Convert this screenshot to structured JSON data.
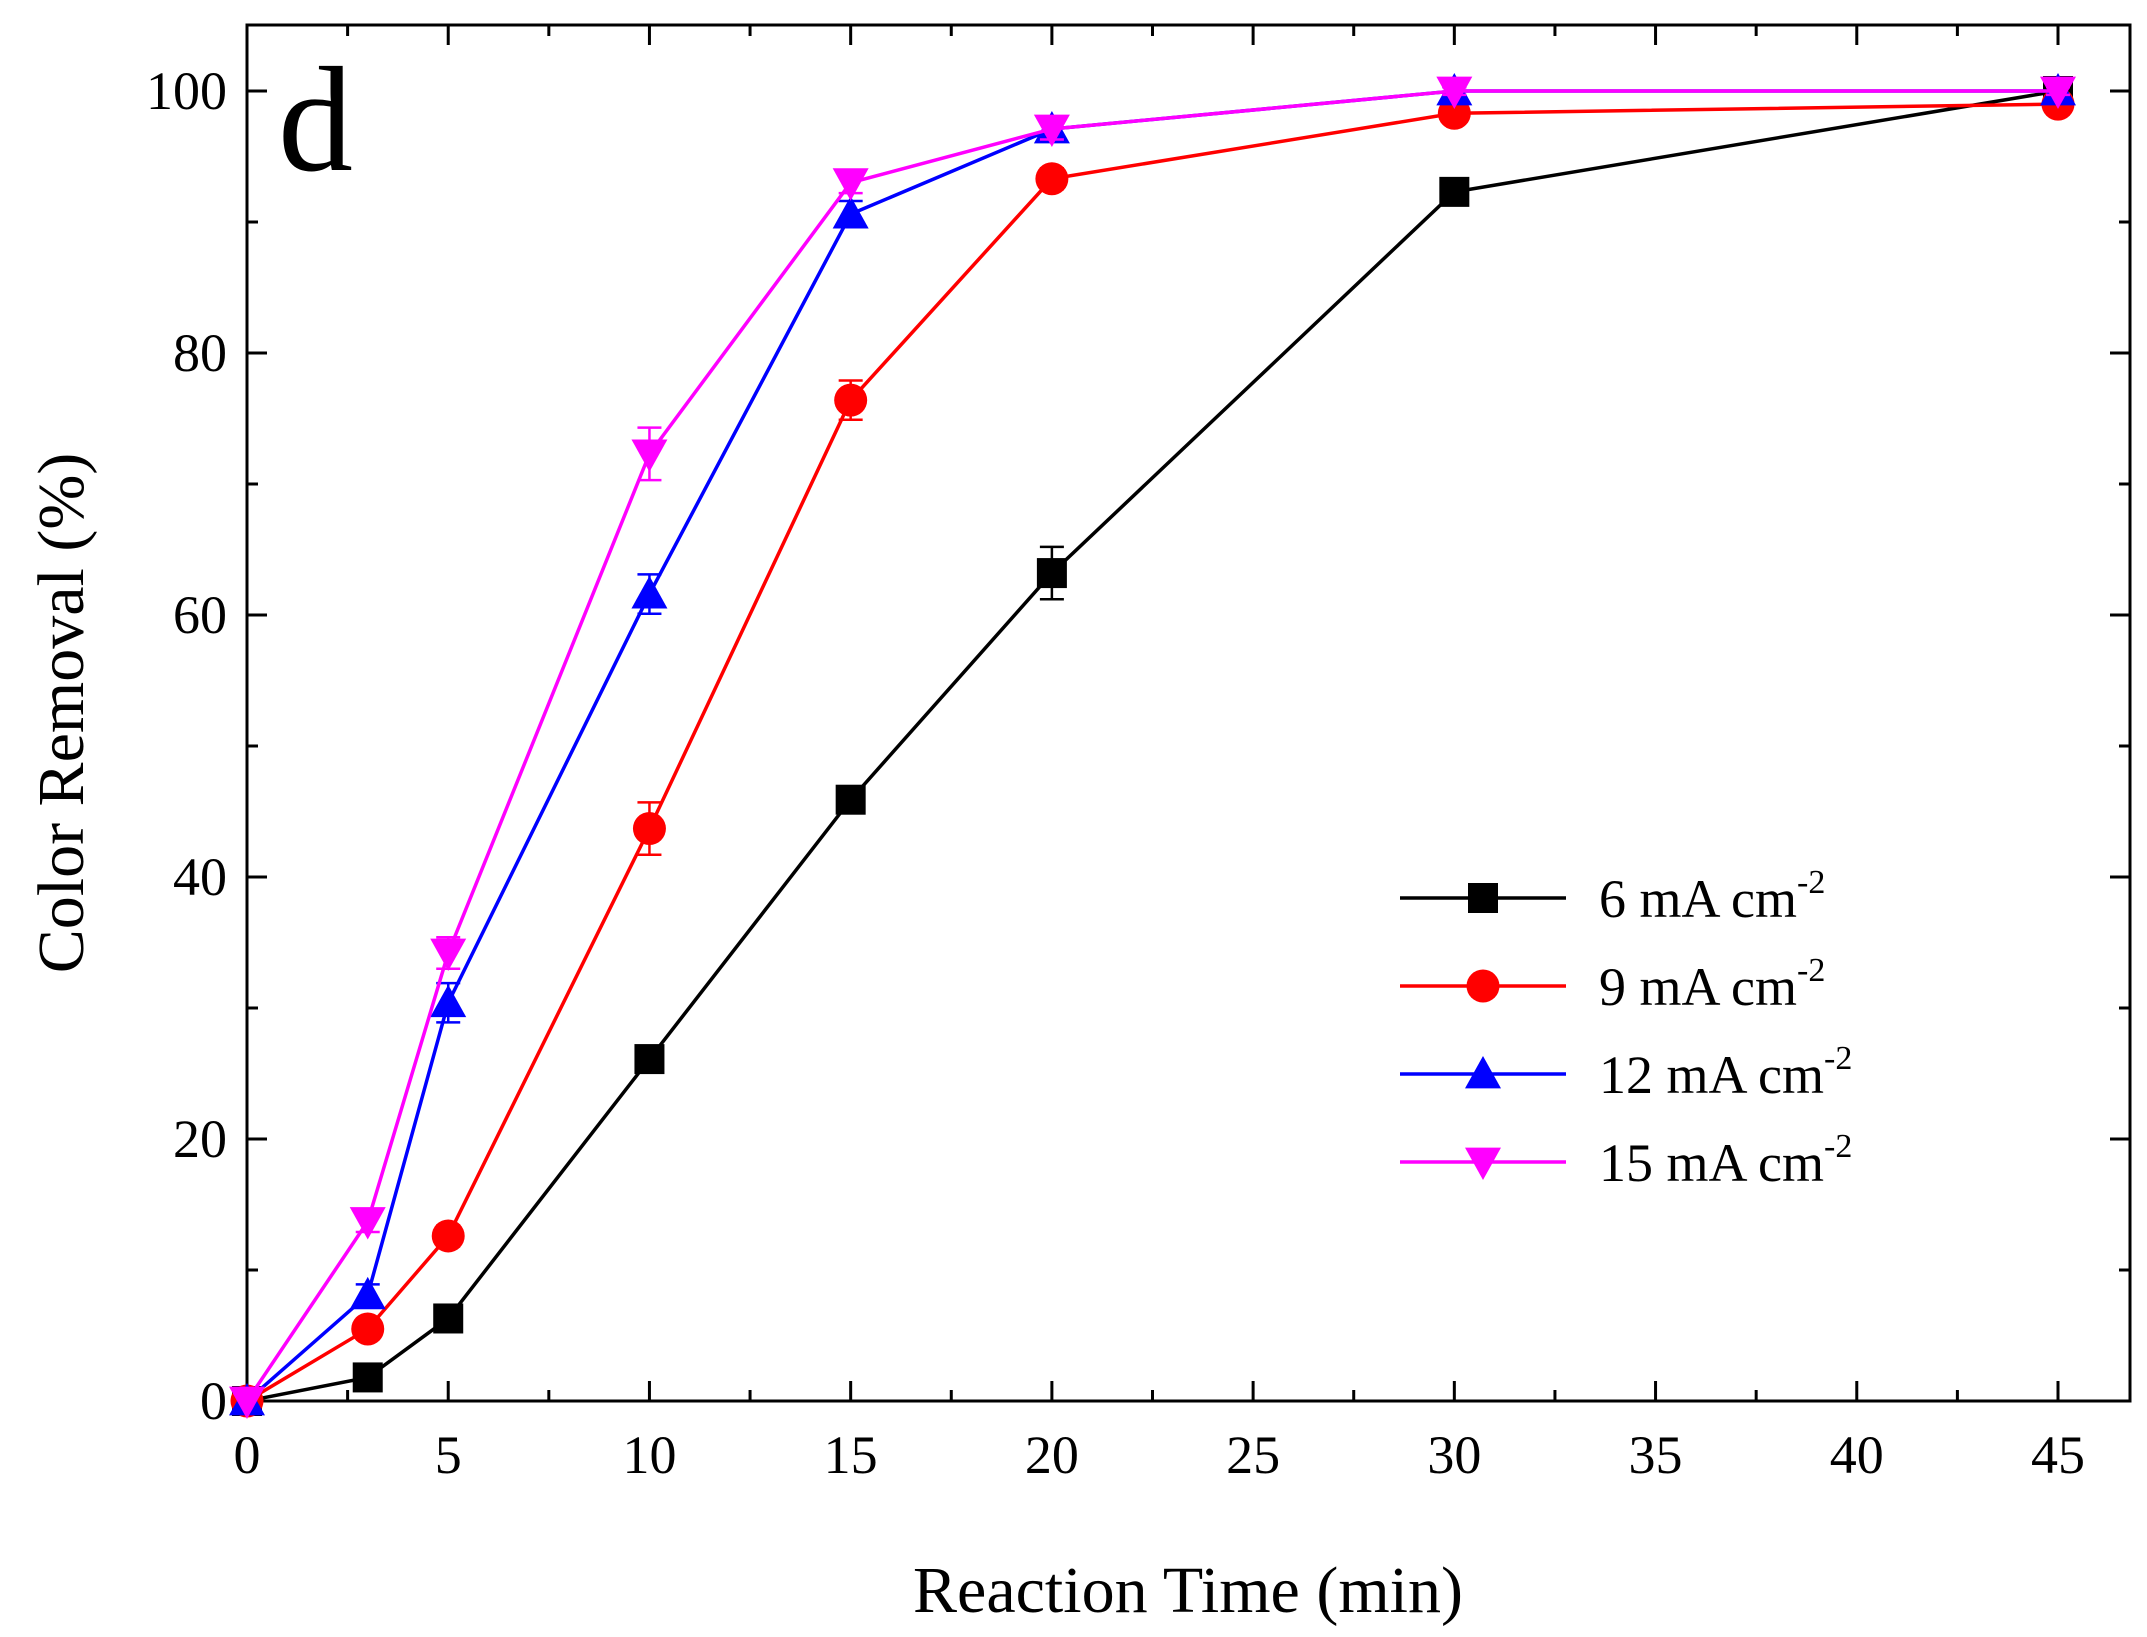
{
  "chart_data": {
    "type": "line",
    "panel_label": "d",
    "title": "",
    "xlabel": "Reaction Time (min)",
    "ylabel": "Color Removal (%)",
    "xlim": [
      0,
      47
    ],
    "ylim": [
      0,
      104
    ],
    "x_ticks": [
      0,
      5,
      10,
      15,
      20,
      25,
      30,
      35,
      40,
      45
    ],
    "y_ticks": [
      0,
      20,
      40,
      60,
      80,
      100
    ],
    "grid": false,
    "legend_position": "center-right",
    "x": [
      0,
      3,
      5,
      10,
      15,
      20,
      30,
      45
    ],
    "series": [
      {
        "name": "6 mA cm",
        "superscript": "-2",
        "color": "#000000",
        "marker": "square",
        "values": [
          0,
          1.8,
          6.3,
          26.1,
          45.9,
          63.2,
          92.3,
          100
        ],
        "errors": [
          0,
          0,
          0.5,
          1.0,
          1.0,
          2.0,
          0.5,
          0.4
        ]
      },
      {
        "name": "9 mA cm",
        "superscript": "-2",
        "color": "#ff0000",
        "marker": "circle",
        "values": [
          0,
          5.5,
          12.6,
          43.7,
          76.4,
          93.3,
          98.3,
          99.0
        ],
        "errors": [
          0,
          0.5,
          0.8,
          2.0,
          1.5,
          0.8,
          0.5,
          0.4
        ]
      },
      {
        "name": "12 mA cm",
        "superscript": "-2",
        "color": "#0000ff",
        "marker": "triangle-up",
        "values": [
          0,
          8.1,
          30.4,
          61.6,
          90.6,
          97.1,
          100,
          100
        ],
        "errors": [
          0,
          0.8,
          1.5,
          1.5,
          1.0,
          0.8,
          0.3,
          0.3
        ]
      },
      {
        "name": "15 mA cm",
        "superscript": "-2",
        "color": "#ff00ff",
        "marker": "triangle-down",
        "values": [
          0,
          13.7,
          34.2,
          72.3,
          93.0,
          97.1,
          100,
          100
        ],
        "errors": [
          0,
          0.8,
          1.2,
          2.0,
          0.8,
          0.8,
          0.3,
          0.3
        ]
      }
    ]
  }
}
